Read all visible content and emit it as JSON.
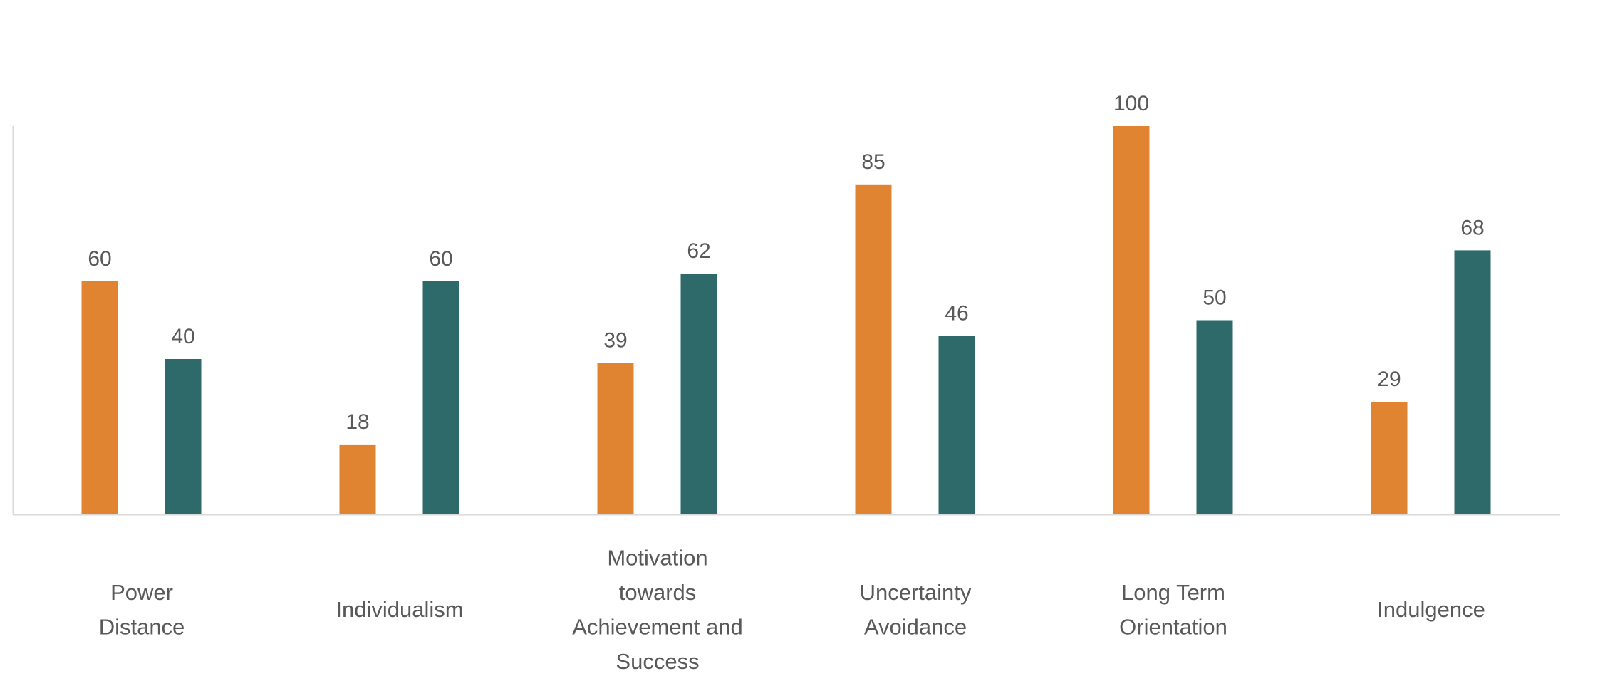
{
  "chart_data": {
    "type": "bar",
    "categories": [
      "Power Distance",
      "Individualism",
      "Motivation towards Achievement and Success",
      "Uncertainty Avoidance",
      "Long Term Orientation",
      "Indulgence"
    ],
    "category_label_lines": [
      [
        "Power",
        "Distance"
      ],
      [
        "Individualism"
      ],
      [
        "Motivation",
        "towards",
        "Achievement and",
        "Success"
      ],
      [
        "Uncertainty",
        "Avoidance"
      ],
      [
        "Long Term",
        "Orientation"
      ],
      [
        "Indulgence"
      ]
    ],
    "series": [
      {
        "values": [
          60,
          18,
          39,
          85,
          100,
          29
        ],
        "color": "#E08431"
      },
      {
        "values": [
          40,
          60,
          62,
          46,
          50,
          68
        ],
        "color": "#2F6A6A"
      }
    ],
    "ylim": [
      0,
      100
    ],
    "title": "",
    "xlabel": "",
    "ylabel": "",
    "grid": false,
    "data_labels": true,
    "legend": "none",
    "axis_color": "#D9D9D9",
    "label_color": "#595959"
  }
}
